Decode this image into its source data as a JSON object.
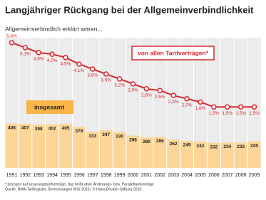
{
  "chart_data": {
    "type": "bar",
    "title": "Langjähriger Rückgang bei der Allgemeinverbindlichkeit",
    "subtitle": "Allgemeinverbindlich erklärt waren...",
    "categories": [
      "1991",
      "1992",
      "1993",
      "1994",
      "1995",
      "1996",
      "1997",
      "1998",
      "1999",
      "2000",
      "2001",
      "2002",
      "2003",
      "2004",
      "2005",
      "2006",
      "2007",
      "2008",
      "2009"
    ],
    "ylim": [
      0,
      1200
    ],
    "y2lim": [
      -2.2,
      5.7
    ],
    "series": [
      {
        "name": "insgesamt",
        "type": "bar",
        "color": "#fdd596",
        "values": [
          408,
          407,
          398,
          402,
          405,
          378,
          333,
          347,
          330,
          298,
          280,
          286,
          262,
          249,
          242,
          232,
          234,
          233,
          245
        ]
      },
      {
        "name": "von allen Tarifverträgen*",
        "type": "line",
        "axis": "y2",
        "color": "#d7282f",
        "values": [
          5.4,
          5.1,
          4.8,
          4.7,
          4.5,
          4.1,
          3.8,
          3.5,
          3.2,
          2.9,
          2.6,
          2.5,
          2.2,
          2.0,
          1.8,
          1.5,
          1.5,
          1.5,
          1.5
        ],
        "value_labels": [
          "5,4%",
          "5,1%",
          "4,8%",
          "4,7%",
          "4,5%",
          "4,1%",
          "3,8%",
          "3,5%",
          "3,2%",
          "2,9%",
          "2,6%",
          "2,5%",
          "2,2%",
          "2,0%",
          "1,8%",
          "1,5%",
          "1,5%",
          "1,5%",
          "1,5%"
        ]
      }
    ],
    "footnote": "* bezogen auf Ursprungstarifverträge, das heißt ohne Änderungs- bzw. Paralleltarifverträge",
    "source": "Quelle: BMA-Tarifregister, Berechnungen WSI 2010 | © Hans-Böckler-Stiftung 2010"
  }
}
